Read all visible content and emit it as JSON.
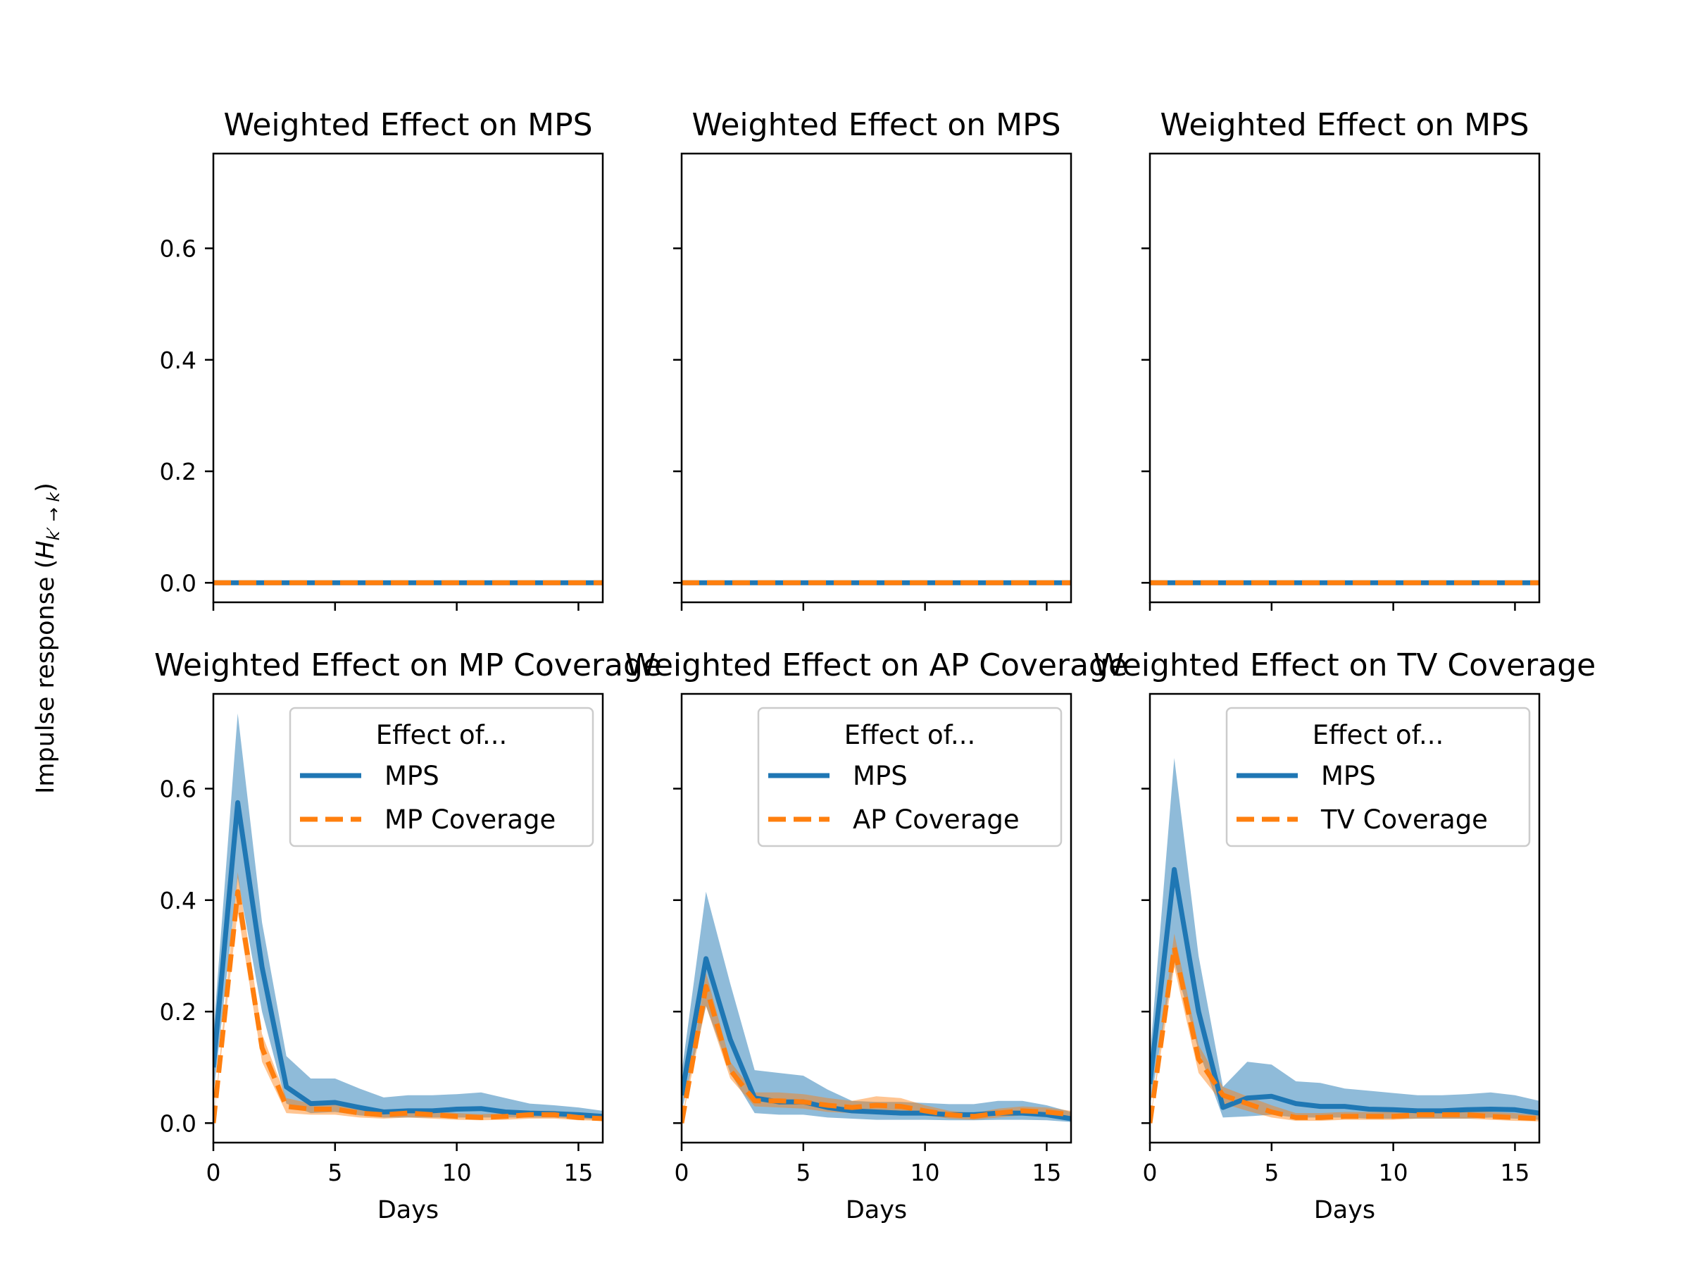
{
  "figure": {
    "ylabel": "Impulse response (",
    "ylabel_math": "H",
    "ylabel_sub": "k′ → k",
    "ylabel_close": ")",
    "colors": {
      "series1": "#1f77b4",
      "series2": "#ff7f0e"
    }
  },
  "chart_data": [
    {
      "type": "line",
      "title": "Weighted Effect on MPS",
      "xlabel": "",
      "ylabel": "",
      "xlim": [
        0,
        16
      ],
      "ylim": [
        -0.035,
        0.77
      ],
      "xticks": [
        0,
        5,
        10,
        15
      ],
      "yticks": [
        0.0,
        0.2,
        0.4,
        0.6
      ],
      "show_xtick_labels": false,
      "show_ytick_labels": true,
      "grid": false,
      "legend": null,
      "x": [
        0,
        1,
        2,
        3,
        4,
        5,
        6,
        7,
        8,
        9,
        10,
        11,
        12,
        13,
        14,
        15,
        16
      ],
      "series": [
        {
          "style": "solid",
          "values": [
            0,
            0,
            0,
            0,
            0,
            0,
            0,
            0,
            0,
            0,
            0,
            0,
            0,
            0,
            0,
            0,
            0
          ]
        },
        {
          "style": "dashed",
          "values": [
            0,
            0,
            0,
            0,
            0,
            0,
            0,
            0,
            0,
            0,
            0,
            0,
            0,
            0,
            0,
            0,
            0
          ]
        }
      ]
    },
    {
      "type": "line",
      "title": "Weighted Effect on MPS",
      "xlabel": "",
      "ylabel": "",
      "xlim": [
        0,
        16
      ],
      "ylim": [
        -0.035,
        0.77
      ],
      "xticks": [
        0,
        5,
        10,
        15
      ],
      "yticks": [
        0.0,
        0.2,
        0.4,
        0.6
      ],
      "show_xtick_labels": false,
      "show_ytick_labels": false,
      "grid": false,
      "legend": null,
      "x": [
        0,
        1,
        2,
        3,
        4,
        5,
        6,
        7,
        8,
        9,
        10,
        11,
        12,
        13,
        14,
        15,
        16
      ],
      "series": [
        {
          "style": "solid",
          "values": [
            0,
            0,
            0,
            0,
            0,
            0,
            0,
            0,
            0,
            0,
            0,
            0,
            0,
            0,
            0,
            0,
            0
          ]
        },
        {
          "style": "dashed",
          "values": [
            0,
            0,
            0,
            0,
            0,
            0,
            0,
            0,
            0,
            0,
            0,
            0,
            0,
            0,
            0,
            0,
            0
          ]
        }
      ]
    },
    {
      "type": "line",
      "title": "Weighted Effect on MPS",
      "xlabel": "",
      "ylabel": "",
      "xlim": [
        0,
        16
      ],
      "ylim": [
        -0.035,
        0.77
      ],
      "xticks": [
        0,
        5,
        10,
        15
      ],
      "yticks": [
        0.0,
        0.2,
        0.4,
        0.6
      ],
      "show_xtick_labels": false,
      "show_ytick_labels": false,
      "grid": false,
      "legend": null,
      "x": [
        0,
        1,
        2,
        3,
        4,
        5,
        6,
        7,
        8,
        9,
        10,
        11,
        12,
        13,
        14,
        15,
        16
      ],
      "series": [
        {
          "style": "solid",
          "values": [
            0,
            0,
            0,
            0,
            0,
            0,
            0,
            0,
            0,
            0,
            0,
            0,
            0,
            0,
            0,
            0,
            0
          ]
        },
        {
          "style": "dashed",
          "values": [
            0,
            0,
            0,
            0,
            0,
            0,
            0,
            0,
            0,
            0,
            0,
            0,
            0,
            0,
            0,
            0,
            0
          ]
        }
      ]
    },
    {
      "type": "line",
      "title": "Weighted Effect on MP Coverage",
      "xlabel": "Days",
      "ylabel": "",
      "xlim": [
        0,
        16
      ],
      "ylim": [
        -0.035,
        0.77
      ],
      "xticks": [
        0,
        5,
        10,
        15
      ],
      "yticks": [
        0.0,
        0.2,
        0.4,
        0.6
      ],
      "show_xtick_labels": true,
      "show_ytick_labels": true,
      "grid": false,
      "legend": {
        "title": "Effect of...",
        "position": "upper right"
      },
      "x": [
        0,
        1,
        2,
        3,
        4,
        5,
        6,
        7,
        8,
        9,
        10,
        11,
        12,
        13,
        14,
        15,
        16
      ],
      "series": [
        {
          "name": "MPS",
          "style": "solid",
          "values": [
            0.1,
            0.575,
            0.28,
            0.065,
            0.035,
            0.037,
            0.028,
            0.02,
            0.022,
            0.022,
            0.025,
            0.026,
            0.02,
            0.018,
            0.017,
            0.015,
            0.012
          ],
          "lower": [
            0.05,
            0.44,
            0.2,
            0.035,
            0.018,
            0.02,
            0.014,
            0.01,
            0.01,
            0.01,
            0.01,
            0.01,
            0.01,
            0.01,
            0.01,
            0.008,
            0.006
          ],
          "upper": [
            0.16,
            0.735,
            0.36,
            0.12,
            0.08,
            0.08,
            0.062,
            0.046,
            0.05,
            0.05,
            0.052,
            0.055,
            0.045,
            0.035,
            0.032,
            0.028,
            0.022
          ]
        },
        {
          "name": "MP Coverage",
          "style": "dashed",
          "values": [
            0,
            0.415,
            0.135,
            0.03,
            0.025,
            0.025,
            0.018,
            0.015,
            0.018,
            0.015,
            0.012,
            0.01,
            0.012,
            0.015,
            0.015,
            0.01,
            0.008
          ],
          "lower": [
            0,
            0.38,
            0.11,
            0.018,
            0.015,
            0.015,
            0.01,
            0.008,
            0.01,
            0.008,
            0.006,
            0.005,
            0.006,
            0.008,
            0.008,
            0.005,
            0.004
          ],
          "upper": [
            0,
            0.45,
            0.16,
            0.045,
            0.035,
            0.035,
            0.026,
            0.022,
            0.026,
            0.022,
            0.018,
            0.016,
            0.018,
            0.022,
            0.022,
            0.016,
            0.013
          ]
        }
      ]
    },
    {
      "type": "line",
      "title": "Weighted Effect on AP Coverage",
      "xlabel": "Days",
      "ylabel": "",
      "xlim": [
        0,
        16
      ],
      "ylim": [
        -0.035,
        0.77
      ],
      "xticks": [
        0,
        5,
        10,
        15
      ],
      "yticks": [
        0.0,
        0.2,
        0.4,
        0.6
      ],
      "show_xtick_labels": true,
      "show_ytick_labels": false,
      "grid": false,
      "legend": {
        "title": "Effect of...",
        "position": "upper right"
      },
      "x": [
        0,
        1,
        2,
        3,
        4,
        5,
        6,
        7,
        8,
        9,
        10,
        11,
        12,
        13,
        14,
        15,
        16
      ],
      "series": [
        {
          "name": "MPS",
          "style": "solid",
          "values": [
            0.05,
            0.295,
            0.15,
            0.045,
            0.038,
            0.038,
            0.028,
            0.022,
            0.02,
            0.018,
            0.018,
            0.015,
            0.015,
            0.018,
            0.018,
            0.015,
            0.008
          ],
          "lower": [
            0.02,
            0.21,
            0.09,
            0.018,
            0.015,
            0.015,
            0.01,
            0.008,
            0.006,
            0.006,
            0.006,
            0.005,
            0.005,
            0.006,
            0.006,
            0.005,
            0.002
          ],
          "upper": [
            0.09,
            0.415,
            0.25,
            0.095,
            0.09,
            0.085,
            0.06,
            0.04,
            0.038,
            0.038,
            0.036,
            0.034,
            0.034,
            0.04,
            0.04,
            0.032,
            0.02
          ]
        },
        {
          "name": "AP Coverage",
          "style": "dashed",
          "values": [
            0,
            0.245,
            0.095,
            0.04,
            0.04,
            0.038,
            0.032,
            0.028,
            0.032,
            0.03,
            0.022,
            0.015,
            0.012,
            0.018,
            0.022,
            0.02,
            0.015
          ],
          "lower": [
            0,
            0.21,
            0.08,
            0.03,
            0.028,
            0.026,
            0.02,
            0.018,
            0.02,
            0.02,
            0.014,
            0.008,
            0.006,
            0.01,
            0.014,
            0.012,
            0.008
          ],
          "upper": [
            0,
            0.27,
            0.11,
            0.055,
            0.055,
            0.052,
            0.045,
            0.04,
            0.048,
            0.045,
            0.032,
            0.022,
            0.018,
            0.026,
            0.03,
            0.028,
            0.022
          ]
        }
      ]
    },
    {
      "type": "line",
      "title": "Weighted Effect on TV Coverage",
      "xlabel": "Days",
      "ylabel": "",
      "xlim": [
        0,
        16
      ],
      "ylim": [
        -0.035,
        0.77
      ],
      "xticks": [
        0,
        5,
        10,
        15
      ],
      "yticks": [
        0.0,
        0.2,
        0.4,
        0.6
      ],
      "show_xtick_labels": true,
      "show_ytick_labels": false,
      "grid": false,
      "legend": {
        "title": "Effect of...",
        "position": "upper right"
      },
      "x": [
        0,
        1,
        2,
        3,
        4,
        5,
        6,
        7,
        8,
        9,
        10,
        11,
        12,
        13,
        14,
        15,
        16
      ],
      "series": [
        {
          "name": "MPS",
          "style": "solid",
          "values": [
            0.07,
            0.455,
            0.2,
            0.028,
            0.045,
            0.048,
            0.035,
            0.03,
            0.03,
            0.025,
            0.024,
            0.022,
            0.022,
            0.024,
            0.025,
            0.024,
            0.018
          ],
          "lower": [
            0.03,
            0.29,
            0.13,
            0.01,
            0.012,
            0.015,
            0.01,
            0.01,
            0.01,
            0.008,
            0.008,
            0.008,
            0.008,
            0.008,
            0.01,
            0.008,
            0.006
          ],
          "upper": [
            0.12,
            0.655,
            0.3,
            0.065,
            0.11,
            0.105,
            0.075,
            0.072,
            0.062,
            0.058,
            0.054,
            0.05,
            0.05,
            0.052,
            0.055,
            0.05,
            0.04
          ]
        },
        {
          "name": "TV Coverage",
          "style": "dashed",
          "values": [
            0,
            0.315,
            0.115,
            0.05,
            0.035,
            0.02,
            0.01,
            0.01,
            0.012,
            0.012,
            0.012,
            0.015,
            0.015,
            0.015,
            0.012,
            0.01,
            0.008
          ],
          "lower": [
            0,
            0.28,
            0.09,
            0.035,
            0.022,
            0.01,
            0.004,
            0.004,
            0.006,
            0.006,
            0.006,
            0.008,
            0.008,
            0.008,
            0.006,
            0.004,
            0.003
          ],
          "upper": [
            0,
            0.34,
            0.14,
            0.065,
            0.048,
            0.032,
            0.018,
            0.018,
            0.02,
            0.02,
            0.02,
            0.024,
            0.024,
            0.024,
            0.02,
            0.018,
            0.014
          ]
        }
      ]
    }
  ]
}
